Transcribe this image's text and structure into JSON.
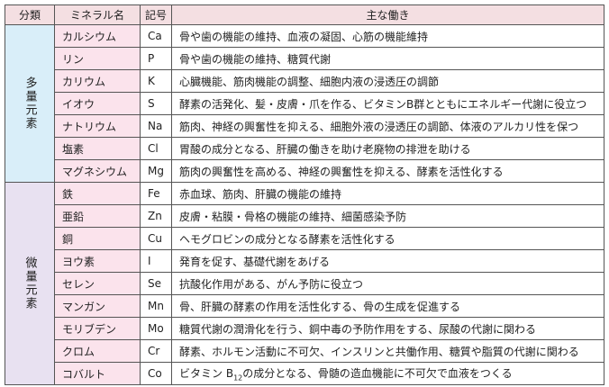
{
  "table": {
    "header": [
      "分類",
      "ミネラル名",
      "記号",
      "主な働き"
    ],
    "groups": [
      {
        "label": "多量元素",
        "rows": 7
      },
      {
        "label": "微量元素",
        "rows": 9
      }
    ],
    "rows": [
      [
        "カルシウム",
        "Ca",
        "骨や歯の機能の維持、血液の凝固、心筋の機能維持"
      ],
      [
        "リン",
        "P",
        "骨や歯の機能の維持、糖質代謝"
      ],
      [
        "カリウム",
        "K",
        "心臓機能、筋肉機能の調整、細胞内液の浸透圧の調節"
      ],
      [
        "イオウ",
        "S",
        "酵素の活発化、髪・皮膚・爪を作る、ビタミンB群とともにエネルギー代謝に役立つ"
      ],
      [
        "ナトリウム",
        "Na",
        "筋肉、神経の興奮性を抑える、細胞外液の浸透圧の調節、体液のアルカリ性を保つ"
      ],
      [
        "塩素",
        "Cl",
        "胃酸の成分となる、肝臓の働きを助け老廃物の排泄を助ける"
      ],
      [
        "マグネシウム",
        "Mg",
        "筋肉の興奮性を高める、神経の興奮性を抑える、酵素を活性化する"
      ],
      [
        "鉄",
        "Fe",
        "赤血球、筋肉、肝臓の機能の維持"
      ],
      [
        "亜鉛",
        "Zn",
        "皮膚・粘膜・骨格の機能の維持、細菌感染予防"
      ],
      [
        "銅",
        "Cu",
        "ヘモグロビンの成分となる酵素を活性化する"
      ],
      [
        "ヨウ素",
        "I",
        "発育を促す、基礎代謝をあげる"
      ],
      [
        "セレン",
        "Se",
        "抗酸化作用がある、がん予防に役立つ"
      ],
      [
        "マンガン",
        "Mn",
        "骨、肝臓の酵素の作用を活性化する、骨の生成を促進する"
      ],
      [
        "モリブデン",
        "Mo",
        "糖質代謝の潤滑化を行う、銅中毒の予防作用をする、尿酸の代謝に関わる"
      ],
      [
        "クロム",
        "Cr",
        "酵素、ホルモン活動に不可欠、インスリンと共働作用、糖質や脂質の代謝に関わる"
      ],
      [
        "コバルト",
        "Co",
        [
          "ビタミン B",
          "12",
          "の成分となる、骨髄の造血機能に不可欠で血液をつくる"
        ]
      ]
    ]
  }
}
